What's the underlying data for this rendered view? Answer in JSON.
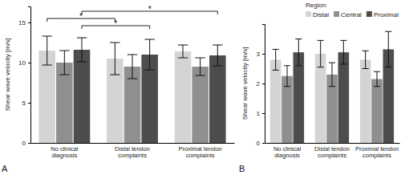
{
  "chart_data": [
    {
      "type": "bar",
      "panel": "A",
      "y_label": "Shear wave velocity [m/s]",
      "categories": [
        "No clinical diagnosis",
        "Distal tendon complaints",
        "Proximal tendon complaints"
      ],
      "series": [
        {
          "name": "Distal",
          "color": "#d4d4d4",
          "values": [
            11.5,
            10.5,
            11.4
          ],
          "errors": [
            1.8,
            2.0,
            0.8
          ]
        },
        {
          "name": "Central",
          "color": "#8f8f8f",
          "values": [
            10.0,
            9.5,
            9.5
          ],
          "errors": [
            1.5,
            1.5,
            1.1
          ]
        },
        {
          "name": "Proximal",
          "color": "#4d4d4d",
          "values": [
            11.6,
            11.0,
            10.9
          ],
          "errors": [
            1.5,
            1.9,
            1.3
          ]
        }
      ],
      "ylim": [
        0,
        17
      ],
      "yticks": [
        0,
        5,
        10,
        15
      ],
      "grid": false,
      "annotations": [
        {
          "text": "*",
          "between": [
            [
              0,
              2
            ],
            [
              2,
              2
            ]
          ]
        },
        {
          "text": "*",
          "between": [
            [
              0,
              0
            ],
            [
              1,
              0
            ]
          ]
        },
        {
          "text": "*",
          "between": [
            [
              0,
              2
            ],
            [
              1,
              2
            ]
          ]
        }
      ]
    },
    {
      "type": "bar",
      "panel": "B",
      "y_label": "Shear wave velocity [m/s]",
      "categories": [
        "No clinical diagnosis",
        "Distal tendon complaints",
        "Proximal tendon complaints"
      ],
      "series": [
        {
          "name": "Distal",
          "color": "#d4d4d4",
          "values": [
            2.8,
            3.0,
            2.8
          ],
          "errors": [
            0.35,
            0.45,
            0.3
          ]
        },
        {
          "name": "Central",
          "color": "#8f8f8f",
          "values": [
            2.25,
            2.3,
            2.15
          ],
          "errors": [
            0.35,
            0.4,
            0.25
          ]
        },
        {
          "name": "Proximal",
          "color": "#4d4d4d",
          "values": [
            3.05,
            3.05,
            3.15
          ],
          "errors": [
            0.45,
            0.4,
            0.6
          ]
        }
      ],
      "ylim": [
        0,
        4
      ],
      "yticks": [
        0,
        1,
        2,
        3
      ],
      "grid": false,
      "legend": "upper right",
      "legend_title": "Region"
    }
  ]
}
